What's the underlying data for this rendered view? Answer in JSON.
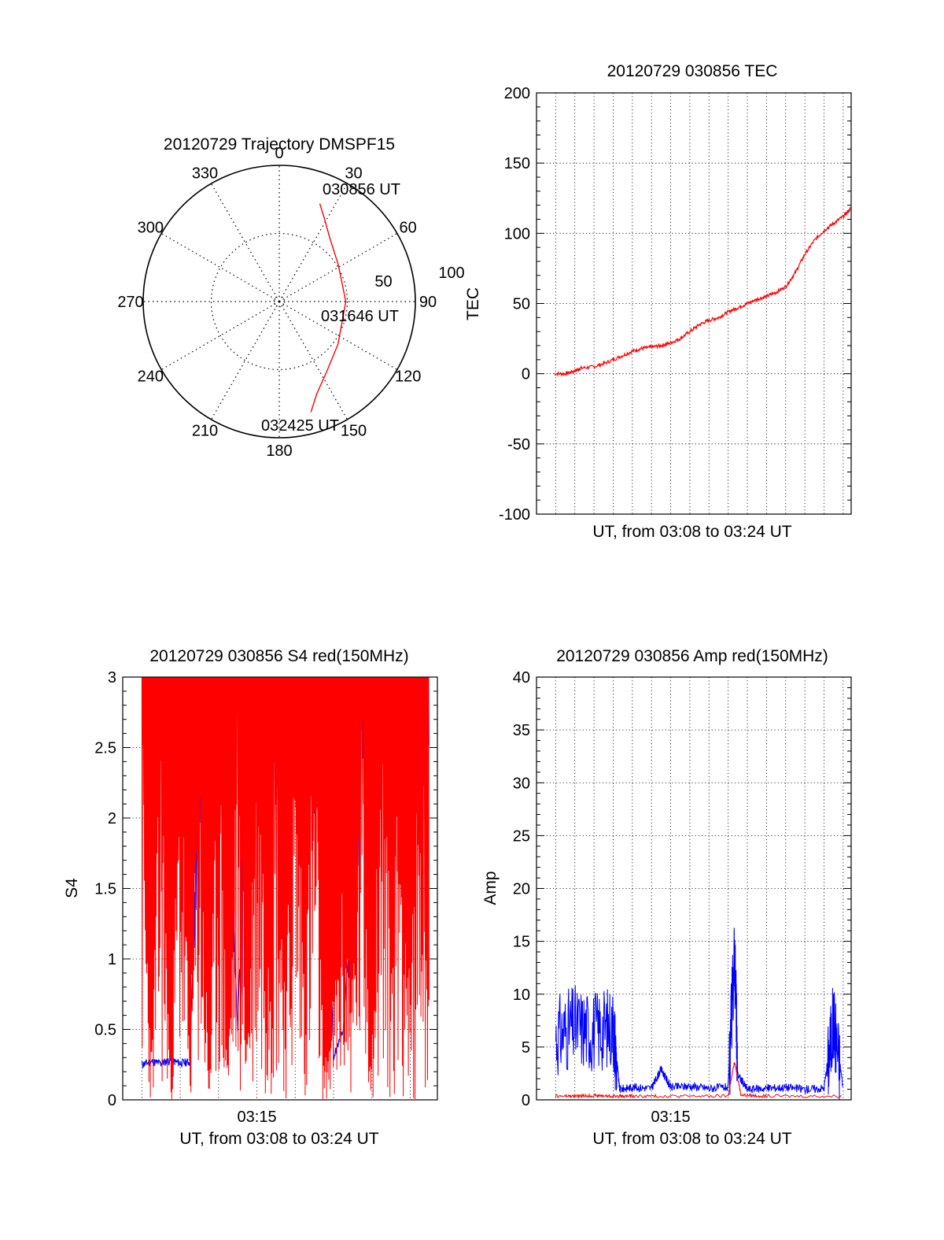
{
  "colors": {
    "red": "#ff0000",
    "blue": "#0000ff",
    "grid": "#000000"
  },
  "chart_data": [
    {
      "id": "trajectory",
      "type": "polar",
      "title": "20120729 Trajectory DMSPF15",
      "angle_labels": [
        "0",
        "30",
        "60",
        "90",
        "120",
        "150",
        "180",
        "210",
        "240",
        "270",
        "300",
        "330"
      ],
      "radial_labels": [
        "50",
        "100"
      ],
      "radial_max": 100,
      "time_labels": [
        "030856 UT",
        "031646 UT",
        "032425 UT"
      ],
      "trajectory": {
        "color": "red",
        "points_az_el": [
          [
            22.5,
            20
          ],
          [
            29,
            28
          ],
          [
            38,
            36
          ],
          [
            58,
            44
          ],
          [
            90,
            46
          ],
          [
            126,
            42
          ],
          [
            146,
            34
          ],
          [
            158,
            24
          ],
          [
            164,
            14
          ]
        ]
      },
      "grid": true
    },
    {
      "id": "tec",
      "type": "line",
      "title": "20120729 030856 TEC",
      "xlabel": "UT, from 03:08 to 03:24 UT",
      "ylabel": "TEC",
      "xlim": [
        "03:08",
        "03:24"
      ],
      "ylim": [
        -100,
        200
      ],
      "yticks": [
        "-100",
        "-50",
        "0",
        "50",
        "100",
        "150",
        "200"
      ],
      "grid": true,
      "series": [
        {
          "color": "red",
          "x": [
            "03:08:56",
            "03:09:30",
            "03:10:00",
            "03:10:20",
            "03:11:00",
            "03:11:40",
            "03:12:20",
            "03:13:00",
            "03:13:30",
            "03:14:00",
            "03:14:30",
            "03:15:00",
            "03:15:30",
            "03:16:00",
            "03:16:30",
            "03:17:00",
            "03:17:30",
            "03:18:00",
            "03:18:30",
            "03:19:00",
            "03:19:30",
            "03:20:00",
            "03:20:30",
            "03:21:00",
            "03:21:30",
            "03:22:00",
            "03:22:30",
            "03:23:00",
            "03:23:30",
            "03:24:00",
            "03:24:25"
          ],
          "y": [
            0,
            0,
            2,
            4,
            5,
            8,
            12,
            16,
            18,
            19,
            20,
            22,
            25,
            30,
            35,
            38,
            40,
            44,
            47,
            50,
            53,
            55,
            58,
            62,
            72,
            85,
            95,
            102,
            107,
            112,
            118
          ]
        }
      ]
    },
    {
      "id": "s4",
      "type": "line",
      "title": "20120729 030856 S4 red(150MHz)",
      "xlabel": "UT, from 03:08 to 03:24 UT",
      "ylabel": "S4",
      "xlim": [
        "03:08",
        "03:24"
      ],
      "xticks": [
        "03:15"
      ],
      "ylim": [
        0,
        3
      ],
      "yticks": [
        "0",
        "0.5",
        "1",
        "1.5",
        "2",
        "2.5",
        "3"
      ],
      "grid": true,
      "series": [
        {
          "name": "",
          "color": "blue",
          "x": [
            "03:09:00",
            "03:09:30",
            "03:10:00",
            "03:10:30",
            "03:11:00",
            "03:11:30",
            "03:12:00",
            "03:12:30",
            "03:13:00",
            "03:13:30",
            "03:14:00",
            "03:14:30",
            "03:15:00",
            "03:15:30",
            "03:16:00",
            "03:16:30",
            "03:17:00",
            "03:17:30",
            "03:18:00",
            "03:18:30",
            "03:19:00",
            "03:19:30",
            "03:20:00",
            "03:20:30",
            "03:21:00",
            "03:21:30",
            "03:22:00",
            "03:22:30",
            "03:23:00",
            "03:23:30",
            "03:24:00"
          ],
          "y": [
            0.25,
            0.27,
            0.26,
            0.28,
            0.26,
            0.27,
            2.5,
            2.1,
            2.6,
            2.2,
            0.5,
            2.8,
            2.4,
            2.7,
            2.6,
            2.2,
            2.7,
            2.9,
            2.5,
            2.8,
            0.3,
            0.5,
            1.5,
            2.9,
            2.6,
            2.8,
            2.4,
            2.7,
            2.5,
            2.9,
            2.6
          ]
        },
        {
          "name": "",
          "color": "red",
          "x": [
            "03:09:00",
            "03:09:30",
            "03:10:00",
            "03:10:30",
            "03:11:00",
            "03:11:30",
            "03:12:00",
            "03:12:30",
            "03:13:00",
            "03:13:30",
            "03:14:00",
            "03:14:30",
            "03:15:00",
            "03:15:30",
            "03:16:00",
            "03:16:30",
            "03:17:00",
            "03:17:30",
            "03:18:00",
            "03:18:30",
            "03:19:00",
            "03:19:30",
            "03:20:00",
            "03:20:30",
            "03:21:00",
            "03:21:30",
            "03:22:00",
            "03:22:30",
            "03:23:00",
            "03:23:30",
            "03:24:00"
          ],
          "y": [
            3,
            0.3,
            3,
            0.2,
            3,
            0.4,
            3,
            0.1,
            3,
            0.3,
            3,
            0.6,
            3,
            1.8,
            3,
            0.9,
            3,
            1.2,
            3,
            0.2,
            0.8,
            1.6,
            1.0,
            3,
            0.5,
            3,
            1.2,
            3,
            0.7,
            3,
            1.5
          ]
        }
      ]
    },
    {
      "id": "amp",
      "type": "line",
      "title": "20120729 030856 Amp red(150MHz)",
      "xlabel": "UT, from 03:08 to 03:24 UT",
      "ylabel": "Amp",
      "xlim": [
        "03:08",
        "03:24"
      ],
      "xticks": [
        "03:15"
      ],
      "ylim": [
        0,
        40
      ],
      "yticks": [
        "0",
        "5",
        "10",
        "15",
        "20",
        "25",
        "30",
        "35",
        "40"
      ],
      "grid": true,
      "series": [
        {
          "name": "",
          "color": "blue",
          "x": [
            "03:09:00",
            "03:10:00",
            "03:11:00",
            "03:12:00",
            "03:12:20",
            "03:13:00",
            "03:14:00",
            "03:14:30",
            "03:15:00",
            "03:16:00",
            "03:17:00",
            "03:18:00",
            "03:18:20",
            "03:18:30",
            "03:19:00",
            "03:20:00",
            "03:21:00",
            "03:22:00",
            "03:23:00",
            "03:23:30",
            "03:24:00"
          ],
          "y": [
            6,
            7,
            6.5,
            7,
            0.6,
            0.8,
            0.7,
            2.5,
            0.8,
            0.9,
            0.7,
            0.8,
            14,
            2,
            0.6,
            0.7,
            0.8,
            0.6,
            0.7,
            7.5,
            0.7
          ]
        },
        {
          "name": "",
          "color": "red",
          "x": [
            "03:09:00",
            "03:10:00",
            "03:11:00",
            "03:12:00",
            "03:13:00",
            "03:15:00",
            "03:18:00",
            "03:18:20",
            "03:18:40",
            "03:20:00",
            "03:24:00"
          ],
          "y": [
            0.2,
            0.2,
            0.25,
            0.2,
            0.2,
            0.2,
            0.2,
            3.5,
            0.3,
            0.2,
            0.2
          ]
        }
      ]
    }
  ]
}
